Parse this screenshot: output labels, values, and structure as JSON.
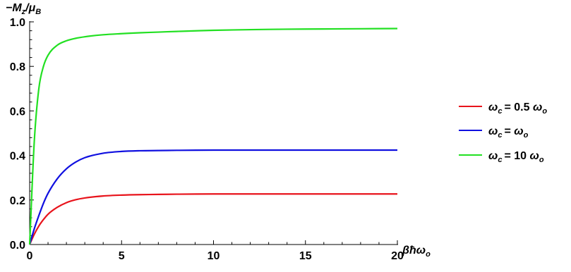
{
  "chart_data": {
    "type": "line",
    "xlabel": {
      "beta": "β",
      "hbar": "ħ",
      "omega": "ω",
      "sub": "o"
    },
    "ylabel": {
      "minus": "−",
      "M": "M",
      "M_sub": "z",
      "slash": "/",
      "mu": "μ",
      "mu_sub": "B"
    },
    "xlim": [
      0,
      20
    ],
    "ylim": [
      0,
      1.0
    ],
    "x_ticks": [
      0,
      5,
      10,
      15,
      20
    ],
    "x_tick_labels": [
      "0",
      "5",
      "10",
      "15",
      "20"
    ],
    "y_ticks": [
      0.0,
      0.2,
      0.4,
      0.6,
      0.8,
      1.0
    ],
    "y_tick_labels": [
      "0.0",
      "0.2",
      "0.4",
      "0.6",
      "0.8",
      "1.0"
    ],
    "grid": false,
    "legend_position": "right",
    "x": [
      0,
      0.25,
      0.5,
      0.75,
      1,
      1.5,
      2,
      2.5,
      3,
      4,
      5,
      6,
      7,
      8,
      10,
      12,
      14,
      16,
      18,
      20
    ],
    "series": [
      {
        "name": {
          "omega": "ω",
          "sub": "c",
          "rest": "= 0.5 ",
          "omega2": "ω",
          "sub2": "o"
        },
        "color": "#e8141c",
        "values": [
          0,
          0.046,
          0.083,
          0.112,
          0.136,
          0.167,
          0.188,
          0.201,
          0.209,
          0.218,
          0.222,
          0.224,
          0.225,
          0.226,
          0.227,
          0.227,
          0.227,
          0.227,
          0.227,
          0.227
        ]
      },
      {
        "name": {
          "omega": "ω",
          "sub": "c",
          "rest": "= ",
          "omega2": "ω",
          "sub2": "o",
          "tail": ""
        },
        "color": "#1010e0",
        "values": [
          0,
          0.07,
          0.13,
          0.185,
          0.23,
          0.295,
          0.34,
          0.37,
          0.39,
          0.41,
          0.418,
          0.421,
          0.422,
          0.423,
          0.424,
          0.424,
          0.424,
          0.424,
          0.424,
          0.424
        ]
      },
      {
        "name": {
          "omega": "ω",
          "sub": "c",
          "rest": "= 10 ",
          "omega2": "ω",
          "sub2": "o"
        },
        "color": "#22e022",
        "values": [
          0,
          0.46,
          0.7,
          0.8,
          0.85,
          0.895,
          0.915,
          0.926,
          0.933,
          0.942,
          0.947,
          0.951,
          0.954,
          0.957,
          0.962,
          0.965,
          0.967,
          0.968,
          0.969,
          0.97
        ]
      }
    ]
  }
}
